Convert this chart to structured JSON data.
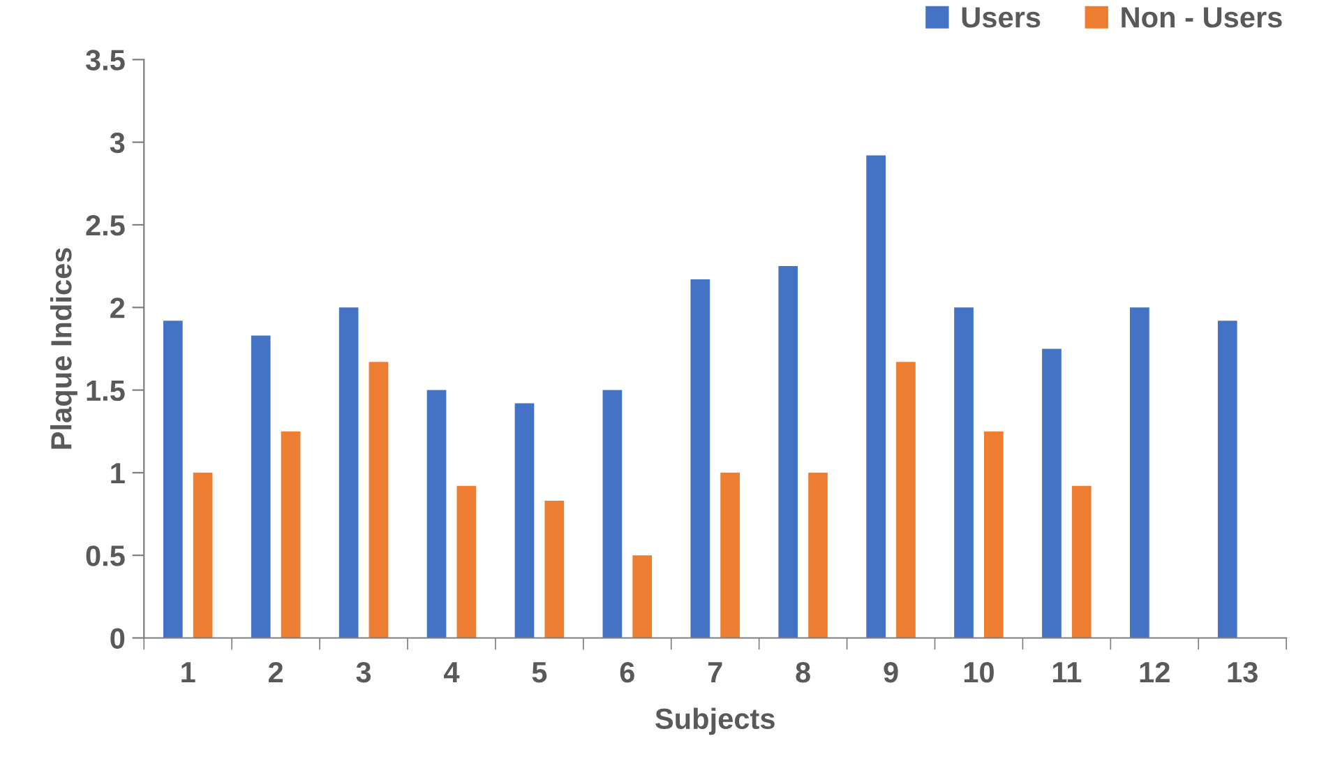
{
  "chart_data": {
    "type": "bar",
    "xlabel": "Subjects",
    "ylabel": "Plaque Indices",
    "categories": [
      "1",
      "2",
      "3",
      "4",
      "5",
      "6",
      "7",
      "8",
      "9",
      "10",
      "11",
      "12",
      "13"
    ],
    "series": [
      {
        "name": "Users",
        "color": "#4472c4",
        "values": [
          1.92,
          1.83,
          2.0,
          1.5,
          1.42,
          1.5,
          2.17,
          2.25,
          2.92,
          2.0,
          1.75,
          2.0,
          1.92
        ]
      },
      {
        "name": "Non - Users",
        "color": "#ed7d31",
        "values": [
          1.0,
          1.25,
          1.67,
          0.92,
          0.83,
          0.5,
          1.0,
          1.0,
          1.67,
          1.25,
          0.92,
          null,
          null
        ]
      }
    ],
    "ylim": [
      0,
      3.5
    ],
    "yticks": [
      0,
      {
        "value": 0.5,
        "label": "0.5"
      },
      1,
      {
        "value": 1.5,
        "label": "1.5"
      },
      2,
      {
        "value": 2.5,
        "label": "2.5"
      },
      3,
      {
        "value": 3.5,
        "label": "3.5"
      }
    ],
    "grid": false,
    "legend": "top right"
  }
}
